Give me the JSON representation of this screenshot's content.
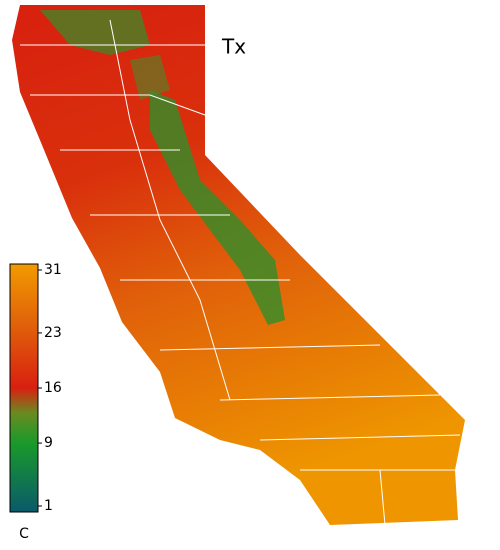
{
  "map": {
    "title": "Tx",
    "colorbar": {
      "label": "C",
      "lim": [
        1,
        31
      ],
      "ticks": [
        31,
        23,
        16,
        9,
        1
      ]
    }
  }
}
